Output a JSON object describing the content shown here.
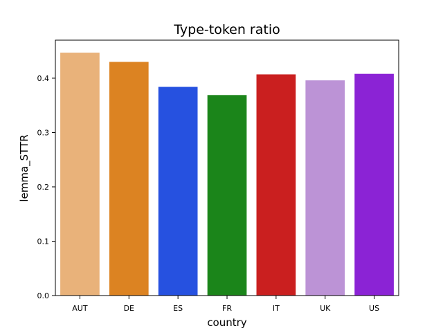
{
  "chart_data": {
    "type": "bar",
    "title": "Type-token ratio",
    "xlabel": "country",
    "ylabel": "lemma_STTR",
    "categories": [
      "AUT",
      "DE",
      "ES",
      "FR",
      "IT",
      "UK",
      "US"
    ],
    "values": [
      0.447,
      0.43,
      0.384,
      0.369,
      0.407,
      0.396,
      0.408
    ],
    "colors": [
      "#E9B27A",
      "#DC8322",
      "#2651E0",
      "#1B851A",
      "#CA1F1F",
      "#BC93D6",
      "#8B23D5"
    ],
    "ylim": [
      0,
      0.47
    ],
    "yticks": [
      0.0,
      0.1,
      0.2,
      0.3,
      0.4
    ],
    "ytick_labels": [
      "0.0",
      "0.1",
      "0.2",
      "0.3",
      "0.4"
    ],
    "grid": false,
    "legend": "none"
  }
}
